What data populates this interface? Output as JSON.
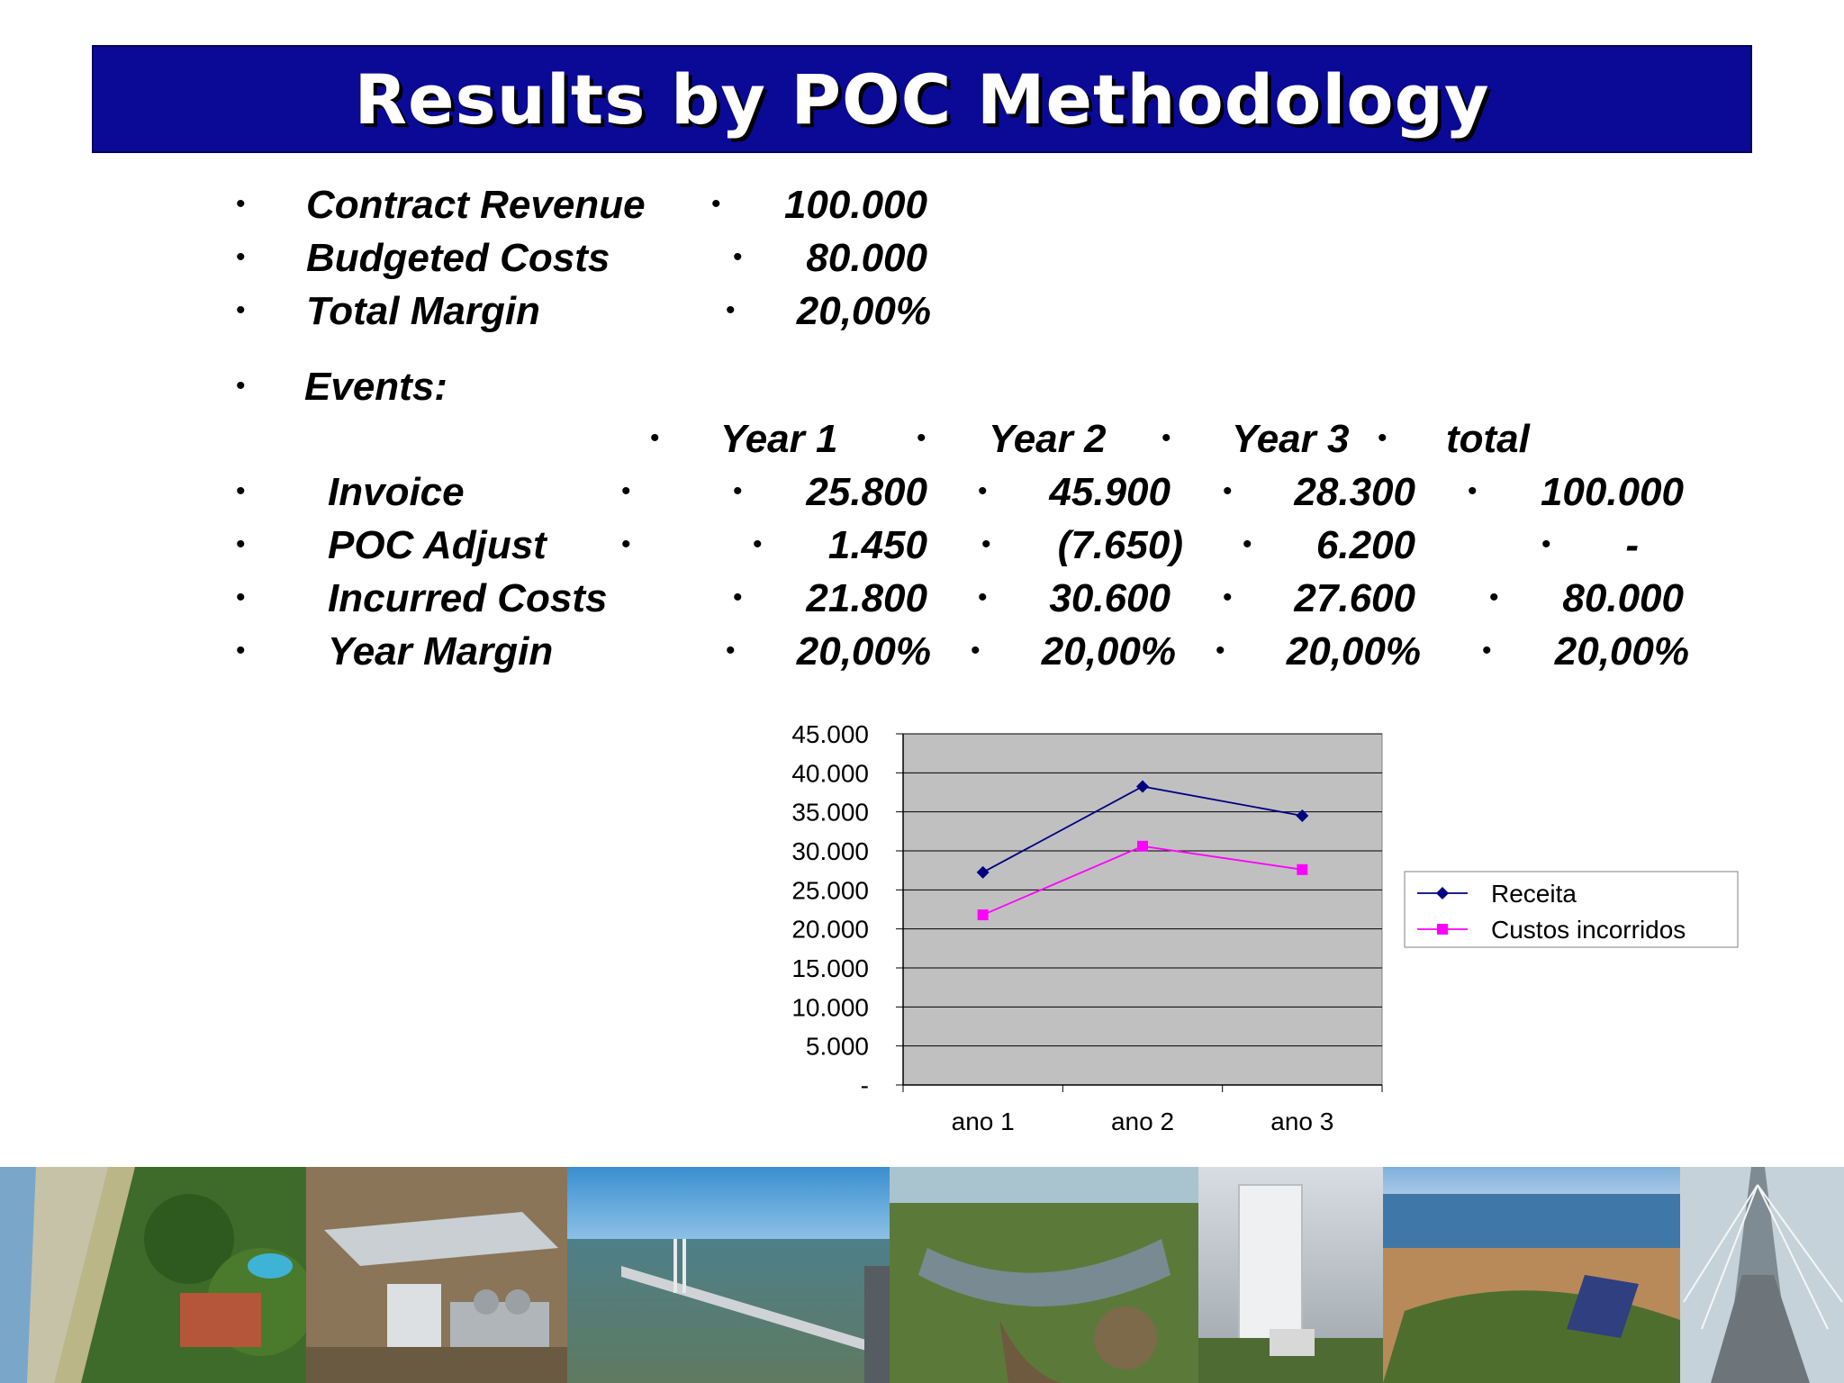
{
  "title": "Results by POC Methodology",
  "summary": [
    {
      "label": "Contract Revenue",
      "value": "100.000"
    },
    {
      "label": "Budgeted Costs",
      "value": "80.000"
    },
    {
      "label": "Total Margin",
      "value": "20,00%"
    }
  ],
  "events_label": "Events:",
  "events_table": {
    "columns": [
      "Year 1",
      "Year 2",
      "Year 3",
      "total"
    ],
    "rows": [
      {
        "label": "Invoice",
        "values": [
          "25.800",
          "45.900",
          "28.300",
          "100.000"
        ]
      },
      {
        "label": "POC Adjust",
        "values": [
          "1.450",
          "(7.650)",
          "6.200",
          "-"
        ]
      },
      {
        "label": "Incurred Costs",
        "values": [
          "21.800",
          "30.600",
          "27.600",
          "80.000"
        ]
      },
      {
        "label": "Year Margin",
        "values": [
          "20,00%",
          "20,00%",
          "20,00%",
          "20,00%"
        ]
      }
    ]
  },
  "bullet_char": "•",
  "chart_data": {
    "type": "line",
    "categories": [
      "ano 1",
      "ano 2",
      "ano 3"
    ],
    "series": [
      {
        "name": "Receita",
        "values": [
          27250,
          38250,
          34500
        ],
        "color": "#000080",
        "marker": "diamond"
      },
      {
        "name": "Custos incorridos",
        "values": [
          21800,
          30600,
          27600
        ],
        "color": "#ff00ff",
        "marker": "square"
      }
    ],
    "ylim": [
      0,
      45000
    ],
    "y_ticks": [
      {
        "value": 45000,
        "label": "45.000"
      },
      {
        "value": 40000,
        "label": "40.000"
      },
      {
        "value": 35000,
        "label": "35.000"
      },
      {
        "value": 30000,
        "label": "30.000"
      },
      {
        "value": 25000,
        "label": "25.000"
      },
      {
        "value": 20000,
        "label": "20.000"
      },
      {
        "value": 15000,
        "label": "15.000"
      },
      {
        "value": 10000,
        "label": "10.000"
      },
      {
        "value": 5000,
        "label": "5.000"
      },
      {
        "value": 0,
        "label": "-"
      }
    ],
    "grid": true,
    "plot_background": "#c0c0c0",
    "legend": "right"
  },
  "colors": {
    "title_bar": "#0a0a96",
    "title_text": "#ffffff"
  }
}
